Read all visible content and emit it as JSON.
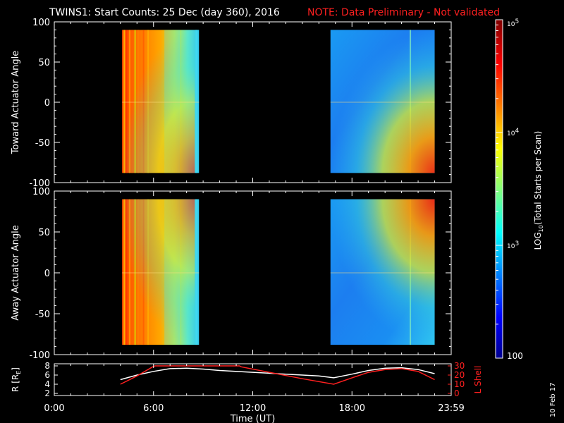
{
  "title": {
    "main": "TWINS1: Start Counts: 25 Dec (day 360), 2016",
    "note": "NOTE: Data Preliminary - Not validated",
    "note_color": "#ff2020"
  },
  "stamp": "10 Feb 17",
  "chart_data": [
    {
      "type": "heatmap",
      "name": "toward",
      "ylabel": "Toward Actuator Angle",
      "ylim": [
        -100,
        100
      ],
      "yticks": [
        -100,
        -50,
        0,
        50,
        100
      ],
      "xlim": [
        0,
        24
      ],
      "data_extent": {
        "y": [
          -88,
          90
        ]
      },
      "blocks": [
        {
          "x0": 4.1,
          "x1": 8.75,
          "profile": "high"
        },
        {
          "x0": 16.7,
          "x1": 23.0,
          "profile": "low"
        }
      ]
    },
    {
      "type": "heatmap",
      "name": "away",
      "ylabel": "Away Actuator Angle",
      "ylim": [
        -100,
        100
      ],
      "yticks": [
        -100,
        -50,
        0,
        50,
        100
      ],
      "xlim": [
        0,
        24
      ],
      "data_extent": {
        "y": [
          -88,
          90
        ]
      },
      "blocks": [
        {
          "x0": 4.1,
          "x1": 8.75,
          "profile": "high"
        },
        {
          "x0": 16.7,
          "x1": 23.0,
          "profile": "low"
        }
      ]
    },
    {
      "type": "line",
      "name": "orbit",
      "xlabel": "Time (UT)",
      "xlim": [
        0,
        24
      ],
      "xticks": [
        "0:00",
        "6:00",
        "12:00",
        "18:00",
        "23:59"
      ],
      "ylabel_left": "R [R",
      "ylabel_left_sub": "E",
      "ylabel_left_end": "]",
      "ylabel_right": "L Shell",
      "yleft_lim": [
        2,
        8
      ],
      "yleft_ticks": [
        2,
        4,
        6,
        8
      ],
      "yright_lim": [
        0,
        30
      ],
      "yright_ticks": [
        0,
        10,
        20,
        30
      ],
      "series": [
        {
          "axis": "left",
          "color": "#ffffff",
          "x": [
            4.0,
            5.0,
            6.0,
            7.0,
            8.0,
            9.0,
            10.0,
            12.0,
            14.0,
            16.0,
            16.9,
            18.0,
            19.0,
            20.0,
            21.0,
            22.0,
            23.0
          ],
          "y": [
            5.0,
            6.0,
            6.8,
            7.4,
            7.5,
            7.3,
            7.0,
            6.6,
            6.2,
            5.8,
            5.4,
            6.2,
            7.0,
            7.5,
            7.6,
            7.2,
            6.3
          ]
        },
        {
          "axis": "right",
          "color": "#ff2020",
          "x": [
            4.0,
            5.0,
            6.0,
            6.1,
            11.2,
            11.3,
            13.0,
            15.0,
            16.9,
            18.0,
            19.0,
            20.0,
            21.0,
            22.0,
            23.0
          ],
          "y": [
            10.0,
            19.0,
            29.5,
            30.0,
            30.0,
            29.0,
            23.0,
            16.0,
            10.0,
            17.0,
            23.0,
            26.0,
            27.0,
            24.0,
            15.0
          ]
        }
      ]
    }
  ],
  "colorbar": {
    "label": "LOG",
    "label_sub": "10",
    "label_end": "(Total Starts per Scan)",
    "ticks": [
      {
        "base": "10",
        "exp": "5",
        "value": 100000
      },
      {
        "base": "10",
        "exp": "4",
        "value": 10000
      },
      {
        "base": "10",
        "exp": "3",
        "value": 1000
      },
      {
        "base": "100",
        "exp": "",
        "value": 100
      }
    ],
    "range": [
      100,
      100000
    ]
  }
}
